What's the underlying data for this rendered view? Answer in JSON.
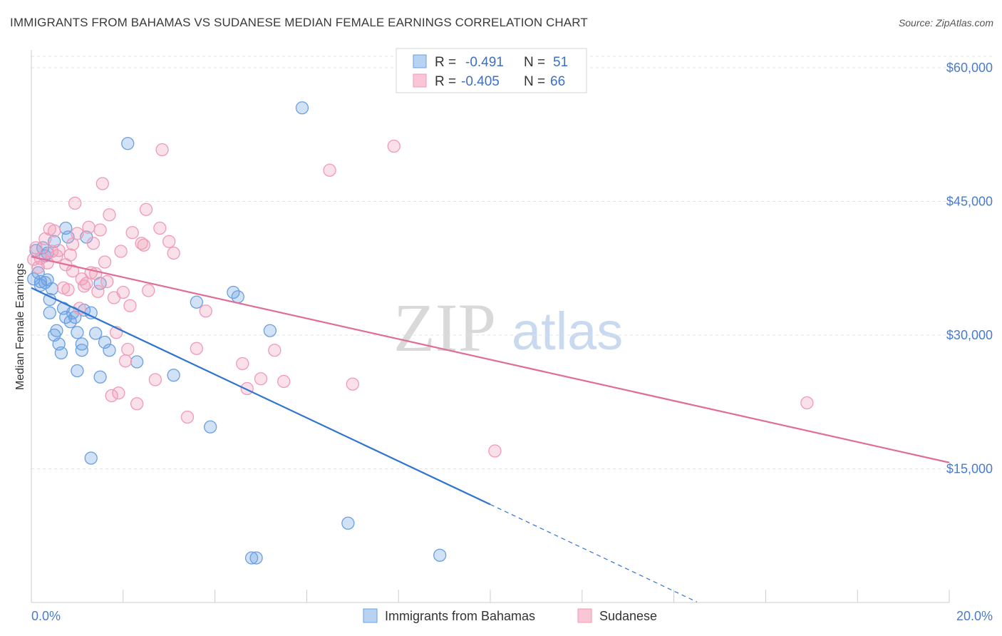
{
  "title": "IMMIGRANTS FROM BAHAMAS VS SUDANESE MEDIAN FEMALE EARNINGS CORRELATION CHART",
  "source": "Source: ZipAtlas.com",
  "watermark": {
    "zip": "ZIP",
    "atlas": "atlas"
  },
  "chart_data": {
    "type": "scatter",
    "ylabel": "Median Female Earnings",
    "xlim": [
      0,
      20
    ],
    "ylim": [
      0,
      62000
    ],
    "x_tick_labels": [
      "0.0%",
      "20.0%"
    ],
    "y_ticks": [
      {
        "value": 15000,
        "label": "$15,000"
      },
      {
        "value": 30000,
        "label": "$30,000"
      },
      {
        "value": 45000,
        "label": "$45,000"
      },
      {
        "value": 60000,
        "label": "$60,000"
      }
    ],
    "grid": "horizontal dashed",
    "legend_position": "bottom-center",
    "series": [
      {
        "name": "Immigrants from Bahamas",
        "color": "#6b9fe0",
        "line_color": "#2f74d0",
        "r_label": "R = ",
        "r": "-0.491",
        "n_label": "N = ",
        "n": "51",
        "trend": {
          "x0": 0,
          "y0": 35300,
          "x1": 10,
          "y1": 11000,
          "dash_to_x": 14.5
        },
        "points": [
          [
            0.1,
            39500
          ],
          [
            0.15,
            37000
          ],
          [
            0.2,
            36000
          ],
          [
            0.25,
            39800
          ],
          [
            0.3,
            38900
          ],
          [
            0.35,
            36200
          ],
          [
            0.4,
            34000
          ],
          [
            0.4,
            32500
          ],
          [
            0.5,
            40500
          ],
          [
            0.5,
            30000
          ],
          [
            0.55,
            30500
          ],
          [
            0.6,
            29000
          ],
          [
            0.65,
            28000
          ],
          [
            0.7,
            33000
          ],
          [
            0.75,
            42000
          ],
          [
            0.75,
            32000
          ],
          [
            0.8,
            41000
          ],
          [
            0.85,
            31500
          ],
          [
            0.9,
            32500
          ],
          [
            0.95,
            32000
          ],
          [
            1.0,
            30300
          ],
          [
            1.0,
            26000
          ],
          [
            1.1,
            28300
          ],
          [
            1.1,
            29000
          ],
          [
            1.2,
            41000
          ],
          [
            1.3,
            32500
          ],
          [
            1.3,
            16200
          ],
          [
            1.4,
            30200
          ],
          [
            1.5,
            35800
          ],
          [
            1.5,
            25300
          ],
          [
            1.6,
            29200
          ],
          [
            1.7,
            28300
          ],
          [
            2.1,
            51500
          ],
          [
            2.3,
            27000
          ],
          [
            3.1,
            25500
          ],
          [
            3.6,
            33700
          ],
          [
            3.9,
            19700
          ],
          [
            4.4,
            34800
          ],
          [
            4.5,
            34300
          ],
          [
            4.8,
            5000
          ],
          [
            4.9,
            5000
          ],
          [
            5.2,
            30500
          ],
          [
            5.9,
            55500
          ],
          [
            6.9,
            8900
          ],
          [
            8.9,
            5300
          ],
          [
            0.05,
            36300
          ],
          [
            0.2,
            35600
          ],
          [
            0.3,
            35900
          ],
          [
            0.35,
            39200
          ],
          [
            0.45,
            35200
          ],
          [
            1.15,
            32800
          ]
        ]
      },
      {
        "name": "Sudanese",
        "color": "#f09ab7",
        "line_color": "#e06d97",
        "r_label": "R = ",
        "r": "-0.405",
        "n_label": "N = ",
        "n": "66",
        "trend": {
          "x0": 0,
          "y0": 38800,
          "x1": 20,
          "y1": 15700
        },
        "points": [
          [
            0.1,
            39800
          ],
          [
            0.2,
            38600
          ],
          [
            0.3,
            40800
          ],
          [
            0.35,
            38100
          ],
          [
            0.4,
            41900
          ],
          [
            0.45,
            39400
          ],
          [
            0.5,
            41700
          ],
          [
            0.55,
            38900
          ],
          [
            0.6,
            39500
          ],
          [
            0.7,
            35300
          ],
          [
            0.75,
            37900
          ],
          [
            0.8,
            35100
          ],
          [
            0.85,
            39000
          ],
          [
            0.9,
            37200
          ],
          [
            0.9,
            40200
          ],
          [
            0.95,
            44800
          ],
          [
            1.0,
            41400
          ],
          [
            1.05,
            33000
          ],
          [
            1.1,
            36300
          ],
          [
            1.15,
            35500
          ],
          [
            1.2,
            35800
          ],
          [
            1.25,
            42100
          ],
          [
            1.3,
            37000
          ],
          [
            1.35,
            40300
          ],
          [
            1.4,
            36900
          ],
          [
            1.45,
            34900
          ],
          [
            1.5,
            41800
          ],
          [
            1.55,
            47000
          ],
          [
            1.6,
            38200
          ],
          [
            1.65,
            36000
          ],
          [
            1.7,
            43500
          ],
          [
            1.75,
            23200
          ],
          [
            1.8,
            34200
          ],
          [
            1.85,
            30300
          ],
          [
            1.9,
            23500
          ],
          [
            2.0,
            34800
          ],
          [
            2.05,
            27100
          ],
          [
            2.1,
            28400
          ],
          [
            2.15,
            33300
          ],
          [
            2.2,
            41500
          ],
          [
            2.3,
            22300
          ],
          [
            2.4,
            40300
          ],
          [
            2.45,
            40100
          ],
          [
            2.5,
            44100
          ],
          [
            2.55,
            35000
          ],
          [
            2.7,
            25000
          ],
          [
            2.8,
            42000
          ],
          [
            2.85,
            50800
          ],
          [
            3.0,
            40500
          ],
          [
            3.1,
            39200
          ],
          [
            3.4,
            20800
          ],
          [
            3.6,
            28500
          ],
          [
            3.8,
            32700
          ],
          [
            4.6,
            26800
          ],
          [
            4.7,
            24000
          ],
          [
            5.0,
            25100
          ],
          [
            5.3,
            28300
          ],
          [
            5.5,
            24800
          ],
          [
            6.5,
            48500
          ],
          [
            7.0,
            24500
          ],
          [
            7.9,
            51200
          ],
          [
            10.1,
            17000
          ],
          [
            16.9,
            22400
          ],
          [
            0.05,
            38500
          ],
          [
            0.15,
            37600
          ],
          [
            1.95,
            39400
          ]
        ]
      }
    ]
  }
}
